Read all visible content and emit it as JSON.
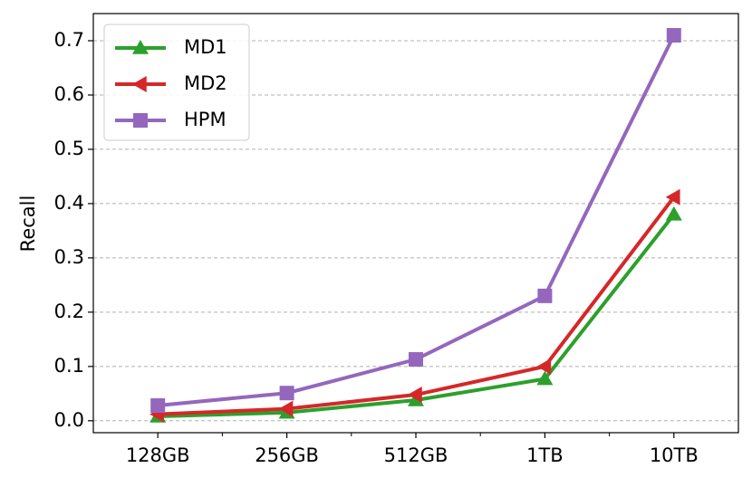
{
  "chart_data": {
    "type": "line",
    "y_label": "Recall",
    "categories": [
      "128GB",
      "256GB",
      "512GB",
      "1TB",
      "10TB"
    ],
    "series": [
      {
        "name": "MD1",
        "color": "#2ca02c",
        "marker": "triangle-up",
        "values": [
          0.008,
          0.015,
          0.038,
          0.077,
          0.38
        ]
      },
      {
        "name": "MD2",
        "color": "#d62728",
        "marker": "triangle-left",
        "values": [
          0.012,
          0.022,
          0.048,
          0.1,
          0.412
        ]
      },
      {
        "name": "HPM",
        "color": "#9467bd",
        "marker": "square",
        "values": [
          0.028,
          0.051,
          0.113,
          0.23,
          0.71
        ]
      }
    ],
    "ylim": [
      -0.022,
      0.75
    ],
    "yticks": [
      {
        "value": 0,
        "label": "0.0"
      },
      0.1,
      0.2,
      0.3,
      0.4,
      0.5,
      0.6,
      0.7
    ],
    "grid": true,
    "legend": "upper-left"
  }
}
